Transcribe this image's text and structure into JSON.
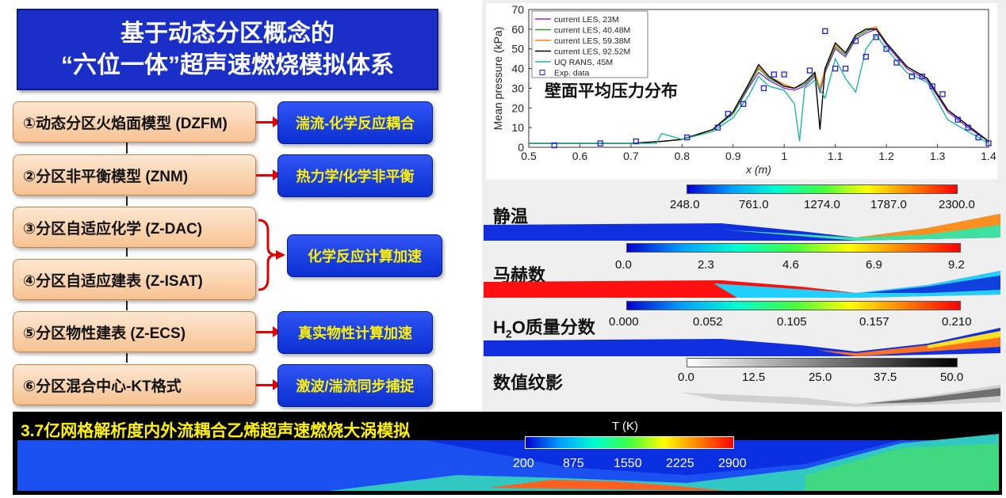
{
  "title": {
    "line1": "基于动态分区概念的",
    "line2": "“六位一体”超声速燃烧模拟体系"
  },
  "models": [
    {
      "label": "①动态分区火焰面模型 (DZFM)"
    },
    {
      "label": "②分区非平衡模型 (ZNM)"
    },
    {
      "label": "③分区自适应化学 (Z-DAC)"
    },
    {
      "label": "④分区自适应建表 (Z-ISAT)"
    },
    {
      "label": "⑤分区物性建表 (Z-ECS)"
    },
    {
      "label": "⑥分区混合中心-KT格式"
    }
  ],
  "tags": [
    {
      "label": "湍流-化学反应耦合"
    },
    {
      "label": "热力学/化学非平衡"
    },
    {
      "label": "化学反应计算加速"
    },
    {
      "label": "真实物性计算加速"
    },
    {
      "label": "激波/湍流同步捕捉"
    }
  ],
  "chart_data": {
    "type": "line",
    "title": "壁面平均压力分布",
    "xlabel": "x (m)",
    "ylabel": "Mean pressure (kPa)",
    "xlim": [
      0.5,
      1.4
    ],
    "ylim": [
      0,
      70
    ],
    "xticks": [
      "0.5",
      "0.6",
      "0.7",
      "0.8",
      "0.9",
      "1",
      "1.1",
      "1.2",
      "1.3",
      "1.4"
    ],
    "yticks": [
      "0",
      "10",
      "20",
      "30",
      "40",
      "50",
      "60",
      "70"
    ],
    "legend_position": "top-left",
    "series": [
      {
        "name": "current LES, 23M",
        "color": "#8a2be2",
        "x": [
          0.5,
          0.6,
          0.7,
          0.76,
          0.8,
          0.86,
          0.9,
          0.93,
          0.95,
          0.97,
          1.0,
          1.02,
          1.04,
          1.06,
          1.07,
          1.08,
          1.1,
          1.12,
          1.14,
          1.16,
          1.18,
          1.2,
          1.24,
          1.28,
          1.32,
          1.36,
          1.4
        ],
        "y": [
          2,
          2,
          2,
          3,
          4,
          9,
          17,
          30,
          38,
          34,
          30,
          29,
          31,
          36,
          28,
          38,
          50,
          46,
          55,
          58,
          60,
          52,
          40,
          34,
          18,
          10,
          3
        ]
      },
      {
        "name": "current LES, 40.48M",
        "color": "#2ca02c",
        "x": [
          0.5,
          0.6,
          0.7,
          0.76,
          0.8,
          0.86,
          0.9,
          0.93,
          0.95,
          0.97,
          1.0,
          1.02,
          1.04,
          1.06,
          1.07,
          1.08,
          1.1,
          1.12,
          1.14,
          1.16,
          1.18,
          1.2,
          1.24,
          1.28,
          1.32,
          1.36,
          1.4
        ],
        "y": [
          2,
          2,
          2,
          3,
          4,
          9,
          17,
          31,
          40,
          35,
          31,
          30,
          32,
          37,
          29,
          39,
          51,
          47,
          56,
          59,
          61,
          53,
          41,
          35,
          19,
          11,
          3
        ]
      },
      {
        "name": "current LES, 59.38M",
        "color": "#ff7f0e",
        "x": [
          0.5,
          0.6,
          0.7,
          0.76,
          0.8,
          0.86,
          0.9,
          0.93,
          0.95,
          0.97,
          1.0,
          1.02,
          1.04,
          1.06,
          1.07,
          1.08,
          1.1,
          1.12,
          1.14,
          1.16,
          1.18,
          1.2,
          1.24,
          1.28,
          1.32,
          1.36,
          1.4
        ],
        "y": [
          2,
          2,
          2,
          3,
          4,
          9,
          18,
          32,
          41,
          36,
          32,
          30,
          33,
          38,
          30,
          40,
          52,
          48,
          57,
          60,
          61,
          53,
          41,
          35,
          19,
          11,
          3
        ]
      },
      {
        "name": "current LES, 92.52M",
        "color": "#000000",
        "x": [
          0.5,
          0.6,
          0.7,
          0.76,
          0.8,
          0.86,
          0.9,
          0.93,
          0.95,
          0.97,
          1.0,
          1.02,
          1.04,
          1.06,
          1.07,
          1.08,
          1.1,
          1.12,
          1.14,
          1.16,
          1.18,
          1.2,
          1.24,
          1.28,
          1.32,
          1.36,
          1.4
        ],
        "y": [
          2,
          2,
          2,
          3,
          4,
          9,
          18,
          32,
          42,
          36,
          31,
          30,
          33,
          38,
          9,
          40,
          53,
          48,
          57,
          60,
          60,
          53,
          41,
          35,
          19,
          11,
          3
        ]
      },
      {
        "name": "UQ RANS, 45M",
        "color": "#1fb5a8",
        "x": [
          0.5,
          0.6,
          0.7,
          0.75,
          0.76,
          0.8,
          0.86,
          0.9,
          0.93,
          0.95,
          0.97,
          1.0,
          1.02,
          1.03,
          1.04,
          1.06,
          1.08,
          1.1,
          1.12,
          1.14,
          1.16,
          1.18,
          1.2,
          1.24,
          1.28,
          1.32,
          1.36,
          1.4
        ],
        "y": [
          2,
          2,
          2,
          2,
          7,
          4,
          8,
          15,
          26,
          36,
          31,
          29,
          22,
          3,
          30,
          34,
          25,
          45,
          35,
          28,
          50,
          57,
          50,
          38,
          33,
          14,
          8,
          2
        ]
      },
      {
        "name": "Exp. data",
        "color": "#2020d0",
        "marker": "square",
        "x": [
          0.55,
          0.64,
          0.71,
          0.81,
          0.87,
          0.89,
          0.92,
          0.96,
          0.98,
          1.0,
          1.05,
          1.08,
          1.1,
          1.12,
          1.14,
          1.16,
          1.18,
          1.2,
          1.22,
          1.25,
          1.27,
          1.29,
          1.31,
          1.34,
          1.36,
          1.38,
          1.4
        ],
        "y": [
          1,
          2,
          3,
          5,
          10,
          17,
          22,
          30,
          37,
          37,
          39,
          59,
          40,
          40,
          54,
          46,
          56,
          50,
          43,
          36,
          36,
          31,
          27,
          14,
          10,
          5,
          2
        ]
      }
    ]
  },
  "fields": [
    {
      "label": "静温",
      "ticks": [
        "248.0",
        "761.0",
        "1274.0",
        "1787.0",
        "2300.0"
      ]
    },
    {
      "label": "马赫数",
      "ticks": [
        "0.0",
        "2.3",
        "4.6",
        "6.9",
        "9.2"
      ]
    },
    {
      "label_prefix": "H",
      "label_sub": "2",
      "label_suffix": "O质量分数",
      "ticks": [
        "0.000",
        "0.052",
        "0.105",
        "0.157",
        "0.210"
      ]
    },
    {
      "label": "数值纹影",
      "ticks": [
        "0.0",
        "12.5",
        "25.0",
        "37.5",
        "50.0"
      ]
    }
  ],
  "bottom": {
    "title": "3.7亿网格解析度内外流耦合乙烯超声速燃烧大涡模拟",
    "colorbar_label": "T (K)",
    "ticks": [
      "200",
      "875",
      "1550",
      "2225",
      "2900"
    ]
  }
}
